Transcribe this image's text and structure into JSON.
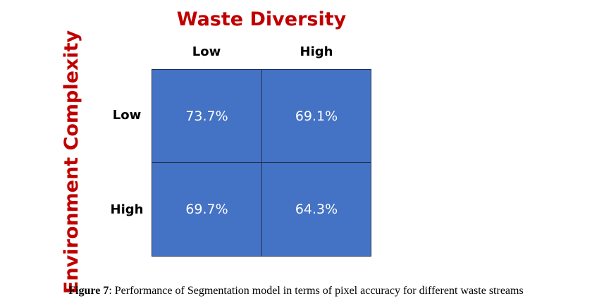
{
  "column_axis_title": "Waste Diversity",
  "row_axis_title": "Environment Complexity",
  "column_labels": [
    "Low",
    "High"
  ],
  "row_labels": [
    "Low",
    "High"
  ],
  "cells": [
    [
      "73.7%",
      "69.1%"
    ],
    [
      "69.7%",
      "64.3%"
    ]
  ],
  "caption": {
    "label": "Figure 7",
    "text": ": Performance of Segmentation model in terms of pixel accuracy for different waste streams"
  },
  "colors": {
    "axis_title": "#c00000",
    "cell_fill": "#4472c4",
    "cell_border": "#1f2f4f",
    "cell_text": "#ffffff"
  }
}
